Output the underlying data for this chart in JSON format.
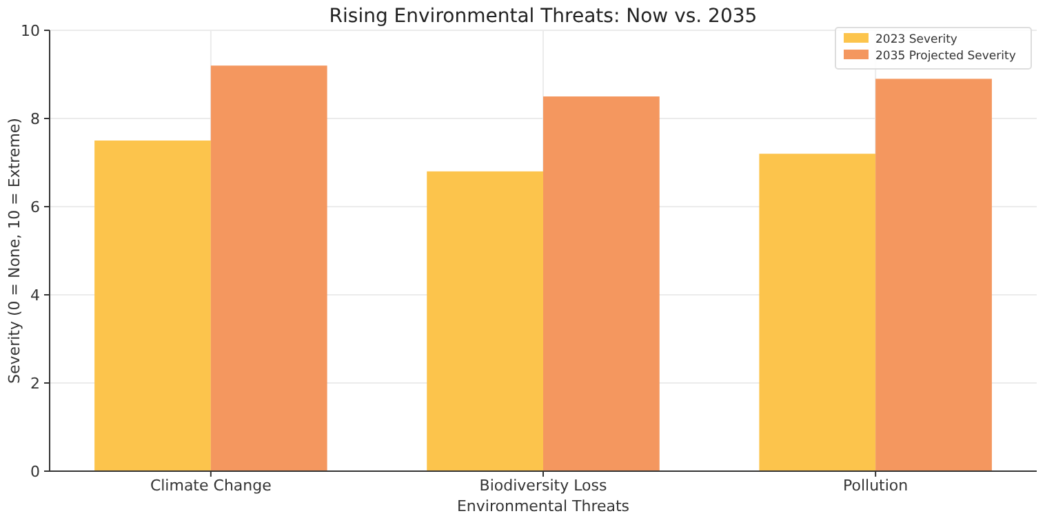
{
  "chart_data": {
    "type": "bar",
    "title": "Rising Environmental Threats: Now vs. 2035",
    "xlabel": "Environmental Threats",
    "ylabel": "Severity (0 = None, 10 = Extreme)",
    "categories": [
      "Climate Change",
      "Biodiversity Loss",
      "Pollution"
    ],
    "series": [
      {
        "name": "2023 Severity",
        "color": "#fcc44c",
        "values": [
          7.5,
          6.8,
          7.2
        ]
      },
      {
        "name": "2035 Projected Severity",
        "color": "#f4975f",
        "values": [
          9.2,
          8.5,
          8.9
        ]
      }
    ],
    "ylim": [
      0,
      10
    ],
    "yticks": [
      0,
      2,
      4,
      6,
      8,
      10
    ],
    "grid": true,
    "legend": "top right"
  }
}
